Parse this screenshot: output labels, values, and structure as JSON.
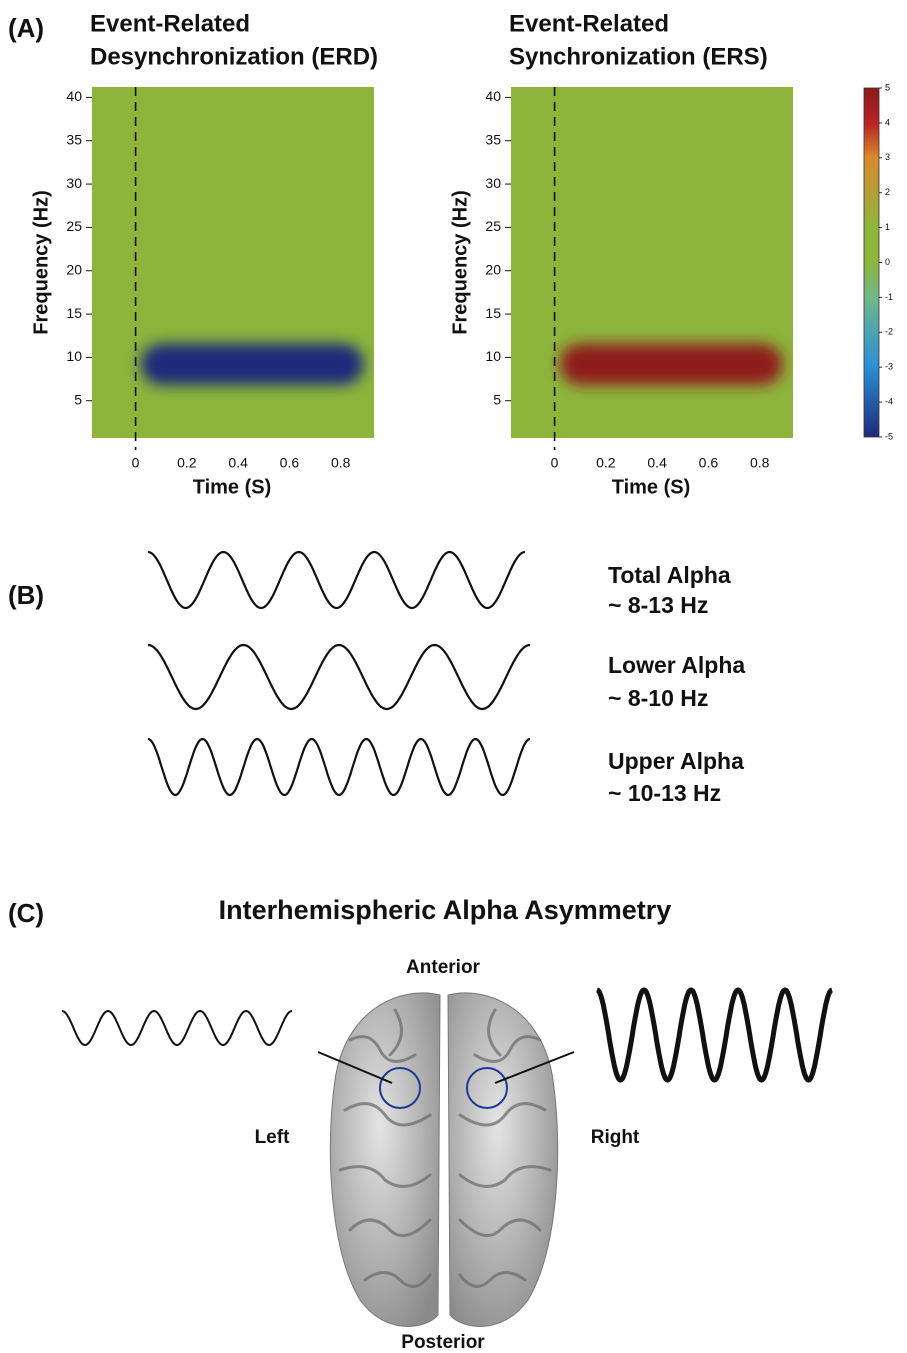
{
  "panel_labels": [
    "(A)",
    "(B)",
    "(C)"
  ],
  "chart_data": [
    {
      "type": "heatmap",
      "title": [
        "Event-Related",
        "Desynchronization (ERD)"
      ],
      "xlabel": "Time (S)",
      "ylabel": "Frequency (Hz)",
      "xlim": [
        -0.17,
        0.93
      ],
      "xticks": [
        0,
        0.2,
        0.4,
        0.6,
        0.8
      ],
      "ylim": [
        0.7,
        41.2
      ],
      "yticks": [
        5,
        10,
        15,
        20,
        25,
        30,
        35,
        40
      ],
      "background_value": 0,
      "vline": 0,
      "regions": [
        {
          "xlim": [
            0.02,
            0.89
          ],
          "ylim": [
            6.8,
            11.6
          ],
          "value": -5
        }
      ]
    },
    {
      "type": "heatmap",
      "title": [
        "Event-Related",
        "Synchronization (ERS)"
      ],
      "xlabel": "Time (S)",
      "ylabel": "Frequency (Hz)",
      "xlim": [
        -0.17,
        0.93
      ],
      "xticks": [
        0,
        0.2,
        0.4,
        0.6,
        0.8
      ],
      "ylim": [
        0.7,
        41.2
      ],
      "yticks": [
        5,
        10,
        15,
        20,
        25,
        30,
        35,
        40
      ],
      "background_value": 0,
      "vline": 0,
      "regions": [
        {
          "xlim": [
            0.02,
            0.89
          ],
          "ylim": [
            6.8,
            11.6
          ],
          "value": 5
        }
      ]
    }
  ],
  "colorbar": {
    "lim": [
      -5,
      5
    ],
    "ticks": [
      -5,
      -4,
      -3,
      -2,
      -1,
      0,
      1,
      2,
      3,
      4,
      5
    ],
    "colormap": [
      {
        "value": -5,
        "color": "#1c2a7a"
      },
      {
        "value": -3,
        "color": "#2a8fd6"
      },
      {
        "value": -1,
        "color": "#6fb88a"
      },
      {
        "value": 0,
        "color": "#8db53c"
      },
      {
        "value": 1,
        "color": "#8db53c"
      },
      {
        "value": 3,
        "color": "#d98a2a"
      },
      {
        "value": 4,
        "color": "#b82323"
      },
      {
        "value": 5,
        "color": "#8e1a1a"
      }
    ]
  },
  "panel_b": {
    "rows": [
      {
        "label": "Total Alpha",
        "range": "~ 8-13 Hz"
      },
      {
        "label": "Lower Alpha",
        "range": "~ 8-10 Hz"
      },
      {
        "label": "Upper Alpha",
        "range": "~ 10-13 Hz"
      }
    ]
  },
  "panel_c": {
    "title": "Interhemispheric Alpha Asymmetry",
    "anterior": "Anterior",
    "posterior": "Posterior",
    "left": "Left",
    "right": "Right"
  }
}
